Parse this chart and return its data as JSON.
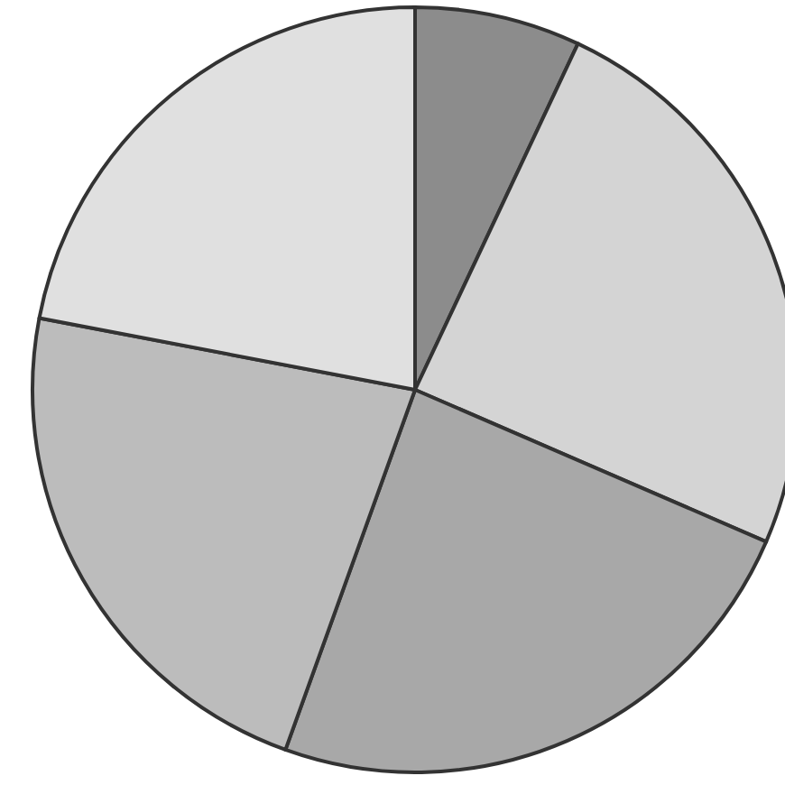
{
  "chart_data": {
    "type": "pie",
    "categories": [
      null,
      null,
      null,
      null,
      null
    ],
    "values": [
      7,
      24.5,
      24,
      22.5,
      22
    ],
    "colors": [
      "#8c8c8c",
      "#d4d4d4",
      "#a8a8a8",
      "#bcbcbc",
      "#e0e0e0"
    ]
  }
}
